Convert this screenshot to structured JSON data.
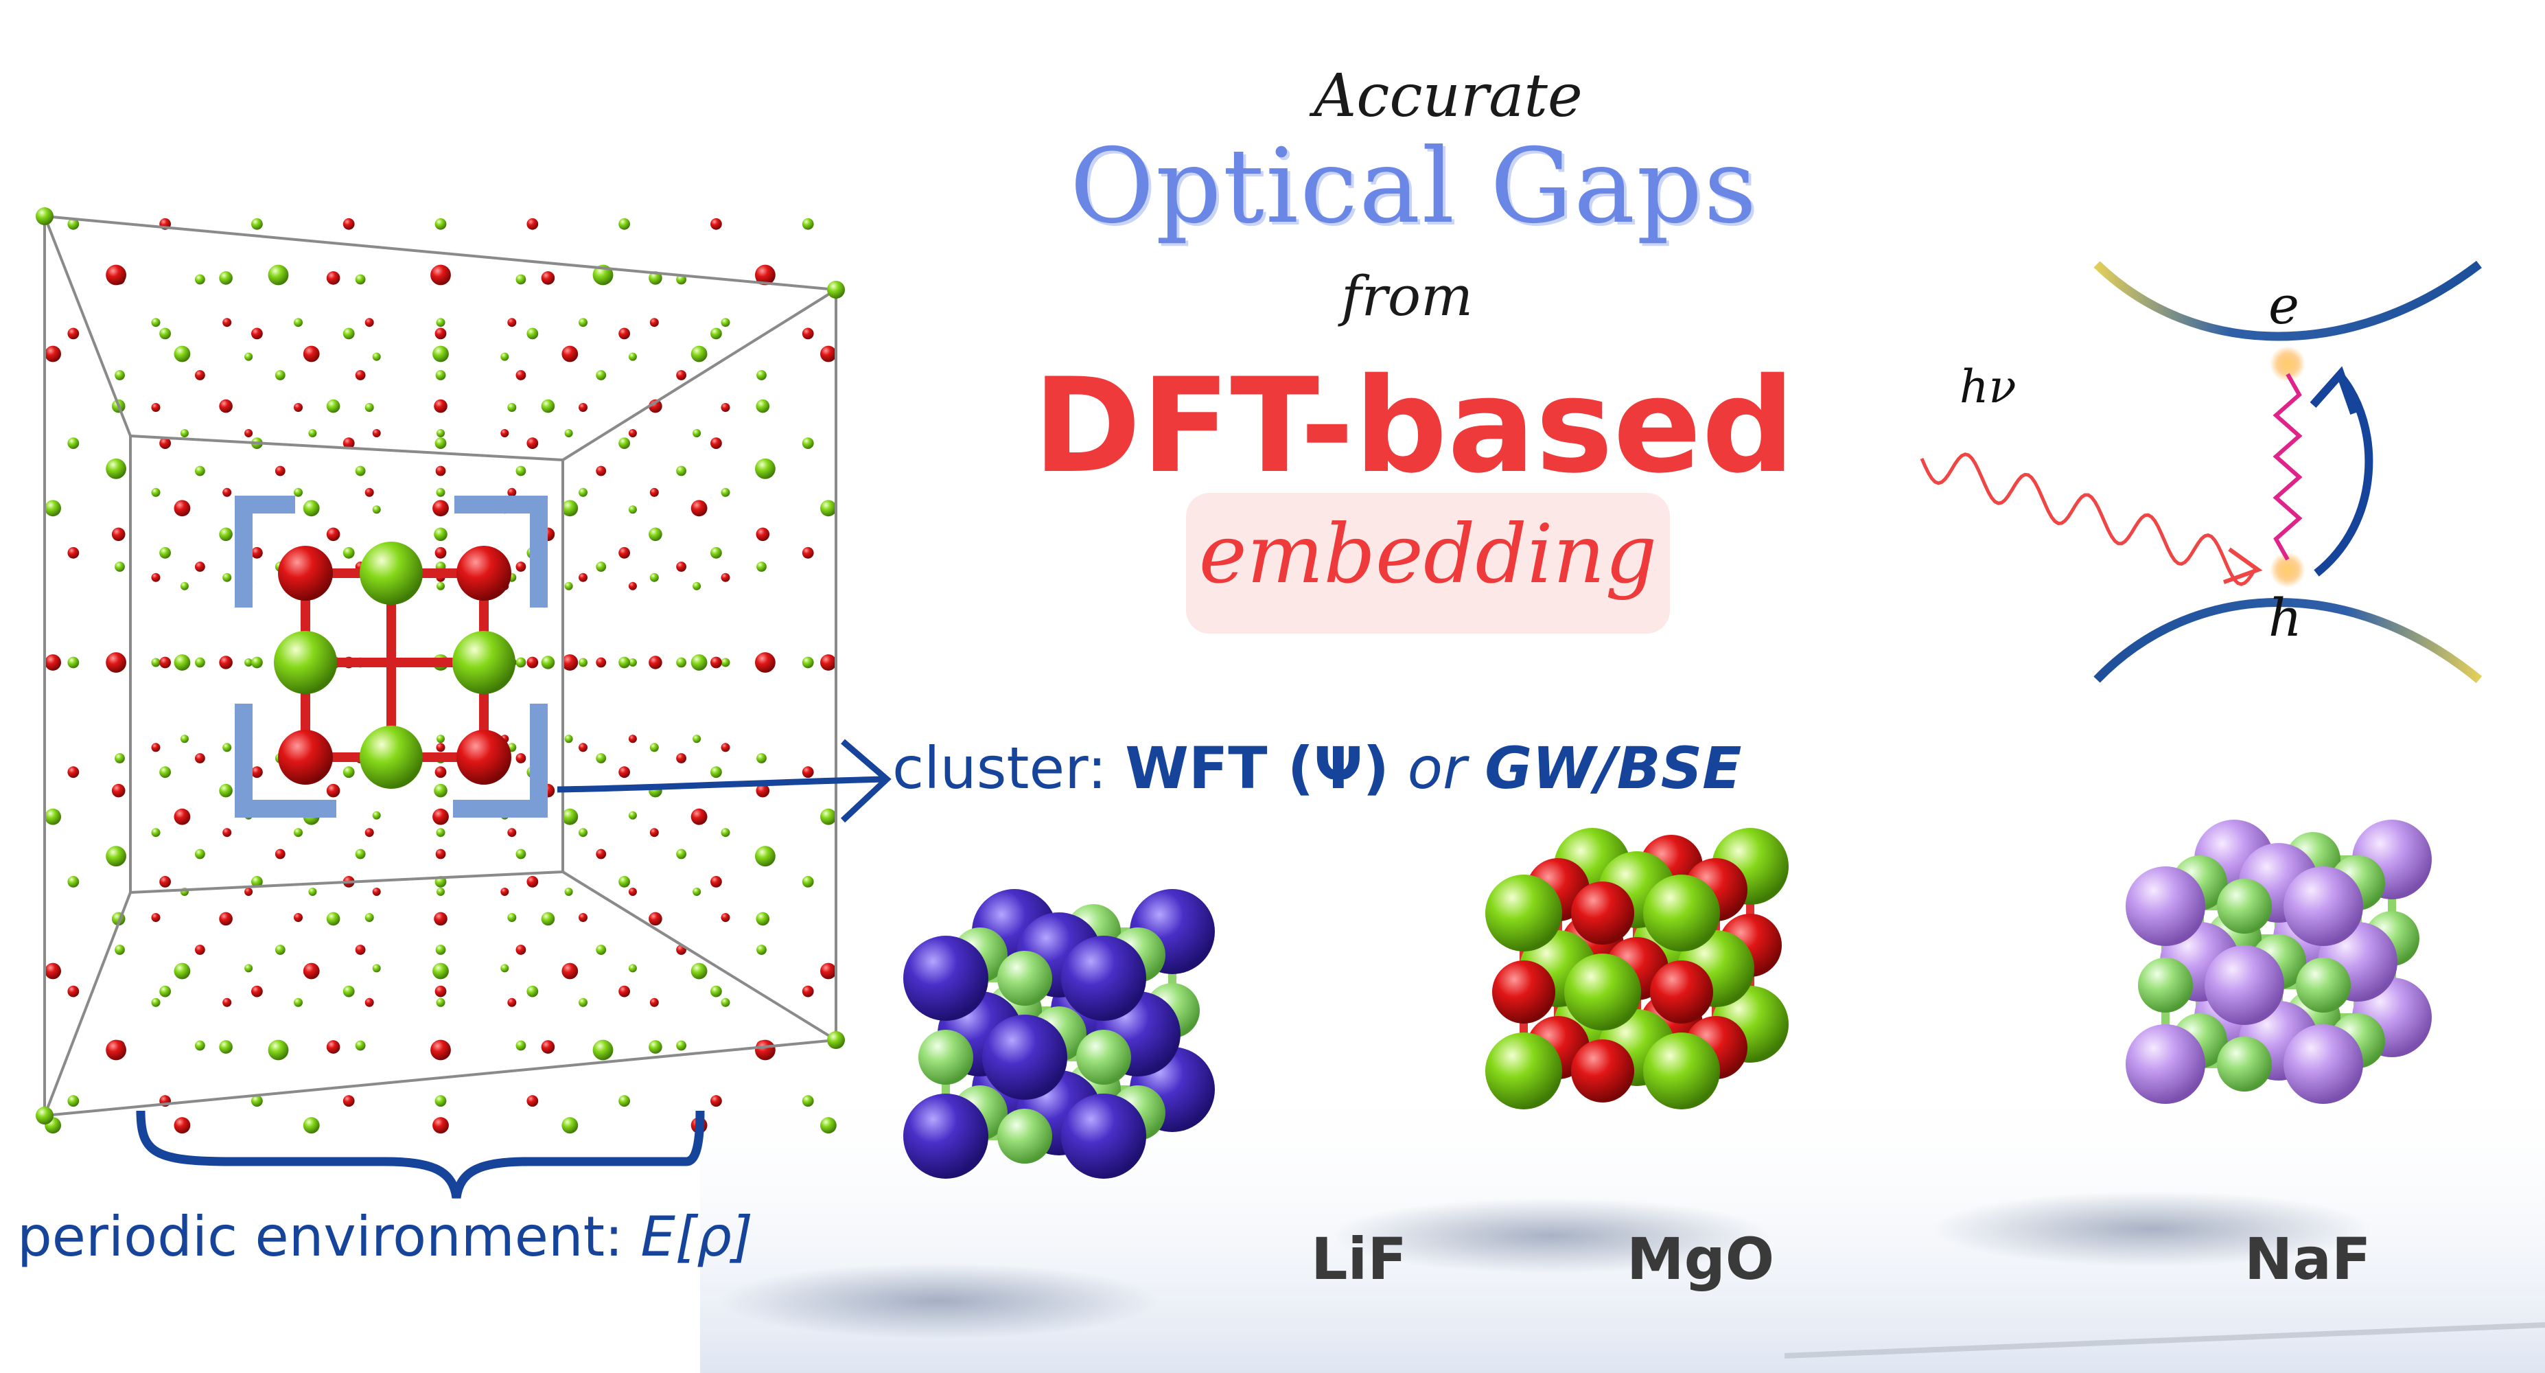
{
  "title": {
    "line1": "Accurate",
    "line2": "Optical Gaps",
    "line3": "from",
    "line4": "DFT-based",
    "line5": "embedding"
  },
  "cluster_label": {
    "prefix": "cluster: ",
    "method1": "WFT (Ψ)",
    "conj": " or ",
    "method2": "GW/BSE"
  },
  "periodic_label": {
    "prefix": "periodic environment: ",
    "term": "E[ρ]"
  },
  "materials": [
    "LiF",
    "MgO",
    "NaF"
  ],
  "excitation": {
    "photon": "hν",
    "electron": "e",
    "hole": "h"
  },
  "colors": {
    "title_blue": "#6a87e6",
    "title_red": "#ee3a3a",
    "label_blue": "#16449b",
    "atom_red": "#e01616",
    "atom_green": "#86d81a",
    "li_purple": "#4a2fc8",
    "f_lightgreen": "#9be07a",
    "na_lilac": "#c49cf0"
  }
}
